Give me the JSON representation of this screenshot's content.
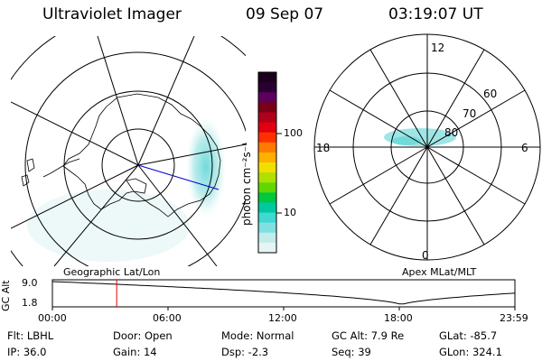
{
  "header": {
    "title": "Ultraviolet Imager",
    "date": "09 Sep 07",
    "time": "03:19:07 UT"
  },
  "left_panel": {
    "caption": "Geographic Lat/Lon"
  },
  "right_panel": {
    "caption": "Apex MLat/MLT",
    "mlt_labels": {
      "top": "12",
      "left": "18",
      "right": "6",
      "bottom": "0"
    },
    "lat_labels": [
      "60",
      "70",
      "80"
    ]
  },
  "colorbar": {
    "label": "photon cm⁻²s⁻¹",
    "ticks": [
      "100",
      "10"
    ],
    "colors": [
      "#1a001a",
      "#2a0030",
      "#5c0060",
      "#7a0018",
      "#b0001a",
      "#e00010",
      "#ff3000",
      "#ff7a00",
      "#ffb000",
      "#f0e000",
      "#b0e000",
      "#60d800",
      "#00c840",
      "#00c8a0",
      "#40d8d0",
      "#80e0e0",
      "#c0ecec",
      "#e8f4f4"
    ]
  },
  "altitude_strip": {
    "axis_label": "GC Alt",
    "y_ticks": [
      "9.0",
      "1.8"
    ],
    "x_ticks": [
      "00:00",
      "06:00",
      "12:00",
      "18:00",
      "23:59"
    ],
    "current_time_fraction": 0.139
  },
  "info": {
    "filter": "Flt: LBHL",
    "door": "Door: Open",
    "mode": "Mode: Normal",
    "gc_alt": "GC Alt: 7.9 Re",
    "glat": "GLat: -85.7",
    "ip": "IP: 36.0",
    "gain": "Gain: 14",
    "dsp": "Dsp:    -2.3",
    "seq": "Seq: 39",
    "glon": "GLon: 324.1"
  },
  "colors": {
    "aurora": "#7fdcdc",
    "marker": "#e00000",
    "sun_line": "#0000cc"
  }
}
